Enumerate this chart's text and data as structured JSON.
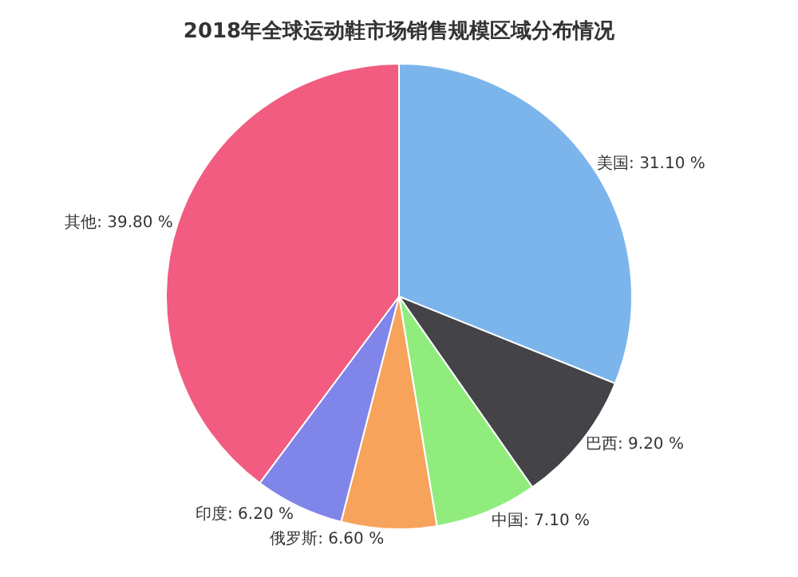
{
  "chart_data": {
    "type": "pie",
    "title": "2018年全球运动鞋市场销售规模区域分布情况",
    "categories": [
      "美国",
      "巴西",
      "中国",
      "俄罗斯",
      "印度",
      "其他"
    ],
    "values": [
      31.1,
      9.2,
      7.1,
      6.6,
      6.2,
      39.8
    ],
    "value_labels": [
      "31.10 %",
      "9.20 %",
      "7.10 %",
      "6.60 %",
      "6.20 %",
      "39.80 %"
    ],
    "colors": [
      "#7cb5ec",
      "#434348",
      "#90ed7d",
      "#f7a35c",
      "#8085e9",
      "#f15c80"
    ],
    "legend": false
  }
}
